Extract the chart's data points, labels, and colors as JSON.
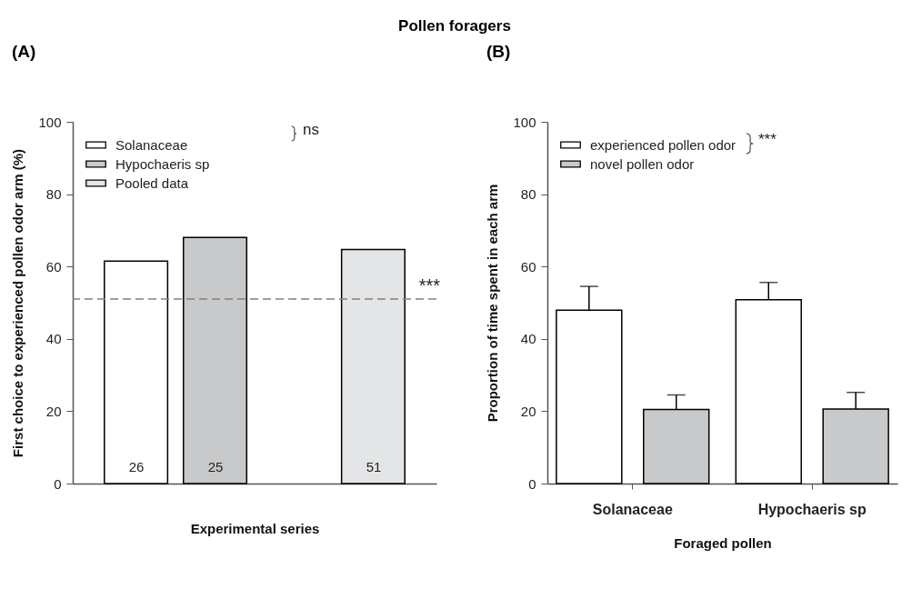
{
  "chart_data": [
    {
      "type": "bar",
      "title": "Pollen foragers",
      "subtitle": "(A)",
      "xlabel": "Experimental series",
      "ylabel": "First choice to experienced pollen odor arm (%)",
      "categories": [
        null,
        null,
        null,
        null
      ],
      "tick_labels": "y",
      "ylim": [
        0,
        100
      ],
      "yticks": [
        0,
        20,
        40,
        60,
        80,
        100
      ],
      "legend": "top left",
      "series": [
        {
          "name": "Solanaceae",
          "color": "#ffffff",
          "values": [
            61.5,
            null,
            null,
            null
          ]
        },
        {
          "name": "Hypochaeris sp",
          "color": "#c8c9cb",
          "values": [
            null,
            68,
            null,
            null
          ]
        },
        {
          "name": "Pooled data",
          "color": "#e4e5e7",
          "values": [
            null,
            null,
            null,
            64.7
          ]
        }
      ],
      "ref_lines": [
        {
          "axis": "y",
          "value": 51,
          "label": "***",
          "color": "#808080",
          "line_style": "dashed"
        }
      ],
      "annotations": [
        "ns",
        "26",
        "25",
        "51"
      ]
    },
    {
      "type": "bar",
      "subtitle": "(B)",
      "xlabel": "Foraged pollen",
      "ylabel": "Proportion of time spent in each arm",
      "categories": [
        "Solanaceae",
        "Hypochaeris sp"
      ],
      "ylim": [
        0,
        100
      ],
      "yticks": [
        0,
        20,
        40,
        60,
        80,
        100
      ],
      "legend": "top left",
      "series": [
        {
          "name": "experienced pollen odor",
          "color": "#ffffff",
          "values": [
            47.9,
            50.8
          ],
          "errors": [
            6.6,
            4.8
          ]
        },
        {
          "name": "novel pollen odor",
          "color": "#c8c9cb",
          "values": [
            20.5,
            20.6
          ],
          "errors": [
            4,
            4.6
          ]
        }
      ],
      "annotations": [
        "***"
      ]
    }
  ]
}
